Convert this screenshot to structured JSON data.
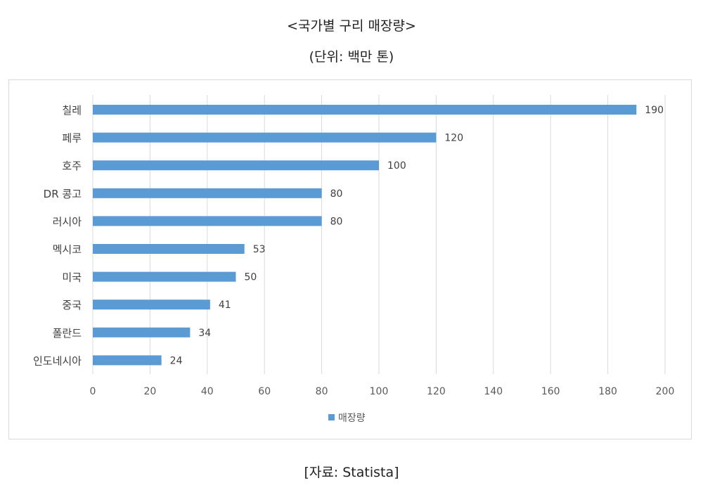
{
  "title": "<국가별 구리 매장량>",
  "subtitle": "(단위: 백만 톤)",
  "source": "[자료: Statista]",
  "chart_data": {
    "type": "bar",
    "orientation": "horizontal",
    "categories": [
      "칠레",
      "페루",
      "호주",
      "DR 콩고",
      "러시아",
      "멕시코",
      "미국",
      "중국",
      "폴란드",
      "인도네시아"
    ],
    "series": [
      {
        "name": "매장량",
        "values": [
          190,
          120,
          100,
          80,
          80,
          53,
          50,
          41,
          34,
          24
        ],
        "color": "#5b9bd5"
      }
    ],
    "xlim": [
      0,
      200
    ],
    "xticks": [
      0,
      20,
      40,
      60,
      80,
      100,
      120,
      140,
      160,
      180,
      200
    ],
    "grid": true,
    "legend": "bottom",
    "data_labels": true
  }
}
